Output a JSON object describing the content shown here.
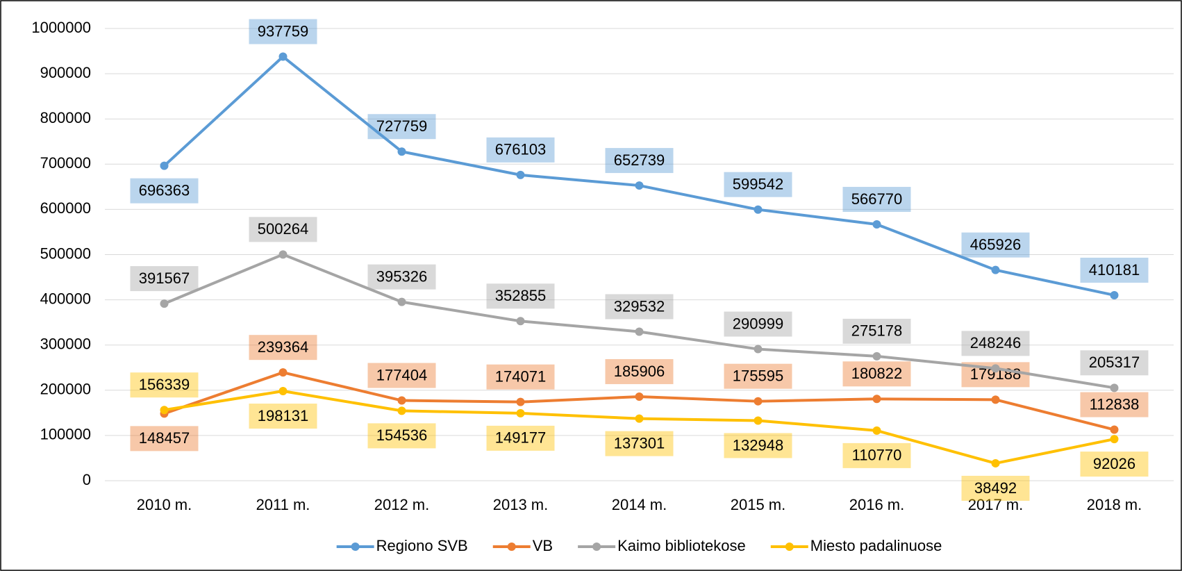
{
  "chart_data": {
    "type": "line",
    "categories": [
      "2010 m.",
      "2011 m.",
      "2012 m.",
      "2013 m.",
      "2014 m.",
      "2015 m.",
      "2016 m.",
      "2017 m.",
      "2018 m."
    ],
    "series": [
      {
        "name": "Regiono SVB",
        "color": "#5B9BD5",
        "values": [
          696363,
          937759,
          727759,
          676103,
          652739,
          599542,
          566770,
          465926,
          410181
        ]
      },
      {
        "name": "VB",
        "color": "#ED7D31",
        "values": [
          148457,
          239364,
          177404,
          174071,
          185906,
          175595,
          180822,
          179188,
          112838
        ]
      },
      {
        "name": "Kaimo bibliotekose",
        "color": "#A5A5A5",
        "values": [
          391567,
          500264,
          395326,
          352855,
          329532,
          290999,
          275178,
          248246,
          205317
        ]
      },
      {
        "name": "Miesto padalinuose",
        "color": "#FFC000",
        "values": [
          156339,
          198131,
          154536,
          149177,
          137301,
          132948,
          110770,
          38492,
          92026
        ]
      }
    ],
    "ylim": [
      0,
      1000000
    ],
    "yticks": [
      0,
      100000,
      200000,
      300000,
      400000,
      500000,
      600000,
      700000,
      800000,
      900000,
      1000000
    ],
    "grid": true,
    "legend": "bottom"
  }
}
